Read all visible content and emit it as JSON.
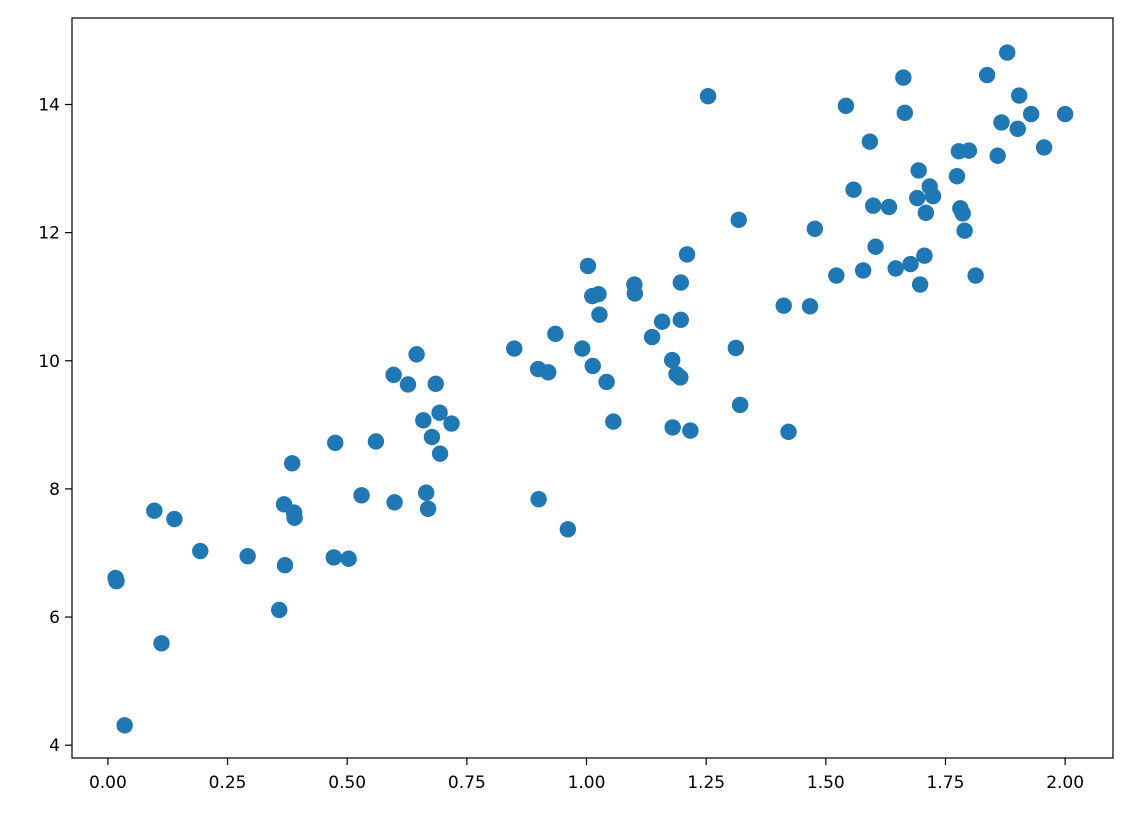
{
  "chart_data": {
    "type": "scatter",
    "title": "",
    "xlabel": "",
    "ylabel": "",
    "xlim": [
      -0.075,
      2.1
    ],
    "ylim": [
      3.8,
      15.35
    ],
    "xticks": [
      0.0,
      0.25,
      0.5,
      0.75,
      1.0,
      1.25,
      1.5,
      1.75,
      2.0
    ],
    "xtick_labels": [
      "0.00",
      "0.25",
      "0.50",
      "0.75",
      "1.00",
      "1.25",
      "1.50",
      "1.75",
      "2.00"
    ],
    "yticks": [
      4,
      6,
      8,
      10,
      12,
      14
    ],
    "ytick_labels": [
      "4",
      "6",
      "8",
      "10",
      "12",
      "14"
    ],
    "grid": false,
    "marker_color": "#1f77b4",
    "points": [
      [
        0.016,
        6.61
      ],
      [
        0.018,
        6.56
      ],
      [
        0.035,
        4.31
      ],
      [
        0.097,
        7.66
      ],
      [
        0.112,
        5.59
      ],
      [
        0.139,
        7.53
      ],
      [
        0.193,
        7.03
      ],
      [
        0.292,
        6.95
      ],
      [
        0.358,
        6.11
      ],
      [
        0.368,
        7.76
      ],
      [
        0.37,
        6.81
      ],
      [
        0.385,
        8.4
      ],
      [
        0.389,
        7.63
      ],
      [
        0.39,
        7.55
      ],
      [
        0.472,
        6.93
      ],
      [
        0.475,
        8.72
      ],
      [
        0.503,
        6.91
      ],
      [
        0.53,
        7.9
      ],
      [
        0.56,
        8.74
      ],
      [
        0.597,
        9.78
      ],
      [
        0.599,
        7.79
      ],
      [
        0.627,
        9.63
      ],
      [
        0.645,
        10.1
      ],
      [
        0.659,
        9.07
      ],
      [
        0.665,
        7.94
      ],
      [
        0.669,
        7.69
      ],
      [
        0.677,
        8.81
      ],
      [
        0.685,
        9.64
      ],
      [
        0.693,
        9.19
      ],
      [
        0.694,
        8.55
      ],
      [
        0.718,
        9.02
      ],
      [
        0.849,
        10.19
      ],
      [
        0.899,
        9.87
      ],
      [
        0.9,
        7.84
      ],
      [
        0.92,
        9.82
      ],
      [
        0.935,
        10.42
      ],
      [
        0.961,
        7.37
      ],
      [
        0.991,
        10.19
      ],
      [
        1.003,
        11.48
      ],
      [
        1.012,
        11.01
      ],
      [
        1.013,
        9.92
      ],
      [
        1.025,
        11.04
      ],
      [
        1.027,
        10.72
      ],
      [
        1.042,
        9.67
      ],
      [
        1.056,
        9.05
      ],
      [
        1.1,
        11.19
      ],
      [
        1.101,
        11.05
      ],
      [
        1.137,
        10.37
      ],
      [
        1.158,
        10.61
      ],
      [
        1.179,
        10.01
      ],
      [
        1.18,
        8.96
      ],
      [
        1.188,
        9.79
      ],
      [
        1.196,
        9.74
      ],
      [
        1.197,
        10.64
      ],
      [
        1.197,
        11.22
      ],
      [
        1.21,
        11.66
      ],
      [
        1.217,
        8.91
      ],
      [
        1.254,
        14.13
      ],
      [
        1.312,
        10.2
      ],
      [
        1.318,
        12.2
      ],
      [
        1.321,
        9.31
      ],
      [
        1.412,
        10.86
      ],
      [
        1.422,
        8.89
      ],
      [
        1.467,
        10.85
      ],
      [
        1.477,
        12.06
      ],
      [
        1.522,
        11.33
      ],
      [
        1.542,
        13.98
      ],
      [
        1.558,
        12.67
      ],
      [
        1.578,
        11.41
      ],
      [
        1.592,
        13.42
      ],
      [
        1.599,
        12.42
      ],
      [
        1.604,
        11.78
      ],
      [
        1.632,
        12.4
      ],
      [
        1.646,
        11.44
      ],
      [
        1.662,
        14.42
      ],
      [
        1.665,
        13.87
      ],
      [
        1.677,
        11.51
      ],
      [
        1.691,
        12.54
      ],
      [
        1.694,
        12.97
      ],
      [
        1.697,
        11.19
      ],
      [
        1.706,
        11.64
      ],
      [
        1.709,
        12.31
      ],
      [
        1.717,
        12.72
      ],
      [
        1.724,
        12.57
      ],
      [
        1.774,
        12.88
      ],
      [
        1.778,
        13.27
      ],
      [
        1.781,
        12.38
      ],
      [
        1.786,
        12.3
      ],
      [
        1.79,
        12.03
      ],
      [
        1.799,
        13.28
      ],
      [
        1.813,
        11.33
      ],
      [
        1.837,
        14.46
      ],
      [
        1.859,
        13.2
      ],
      [
        1.867,
        13.72
      ],
      [
        1.879,
        14.81
      ],
      [
        1.901,
        13.62
      ],
      [
        1.904,
        14.14
      ],
      [
        1.929,
        13.85
      ],
      [
        1.956,
        13.33
      ],
      [
        2.0,
        13.85
      ]
    ]
  }
}
